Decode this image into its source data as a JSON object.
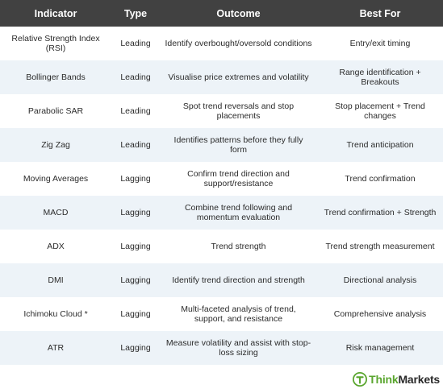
{
  "table": {
    "headers": [
      "Indicator",
      "Type",
      "Outcome",
      "Best For"
    ],
    "rows": [
      {
        "indicator": "Relative Strength Index (RSI)",
        "type": "Leading",
        "outcome": "Identify overbought/oversold conditions",
        "best_for": "Entry/exit timing"
      },
      {
        "indicator": "Bollinger Bands",
        "type": "Leading",
        "outcome": "Visualise price extremes and volatility",
        "best_for": "Range identification + Breakouts"
      },
      {
        "indicator": "Parabolic SAR",
        "type": "Leading",
        "outcome": "Spot trend reversals and stop placements",
        "best_for": "Stop placement + Trend changes"
      },
      {
        "indicator": "Zig Zag",
        "type": "Leading",
        "outcome": "Identifies patterns before they fully form",
        "best_for": "Trend anticipation"
      },
      {
        "indicator": "Moving Averages",
        "type": "Lagging",
        "outcome": "Confirm trend direction and support/resistance",
        "best_for": "Trend confirmation"
      },
      {
        "indicator": "MACD",
        "type": "Lagging",
        "outcome": "Combine trend following and momentum evaluation",
        "best_for": "Trend confirmation + Strength"
      },
      {
        "indicator": "ADX",
        "type": "Lagging",
        "outcome": "Trend strength",
        "best_for": "Trend strength measurement"
      },
      {
        "indicator": "DMI",
        "type": "Lagging",
        "outcome": "Identify trend direction and strength",
        "best_for": "Directional analysis"
      },
      {
        "indicator": "Ichimoku Cloud *",
        "type": "Lagging",
        "outcome": "Multi-faceted analysis of trend, support, and resistance",
        "best_for": "Comprehensive analysis"
      },
      {
        "indicator": "ATR",
        "type": "Lagging",
        "outcome": "Measure volatility and assist with stop-loss sizing",
        "best_for": "Risk management"
      }
    ]
  },
  "logo": {
    "part1": "Think",
    "part2": "Markets",
    "brand_color": "#5aa62f"
  },
  "colors": {
    "header_bg": "#414141",
    "alt_row_bg": "#edf3f8"
  }
}
